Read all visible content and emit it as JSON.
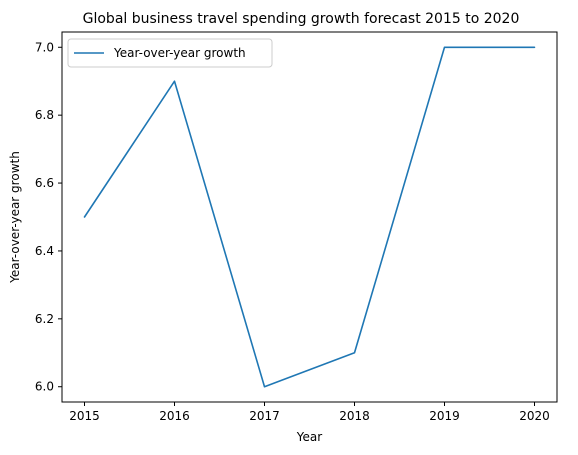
{
  "chart_data": {
    "type": "line",
    "title": "Global business travel spending growth forecast 2015 to 2020",
    "xlabel": "Year",
    "ylabel": "Year-over-year growth",
    "x": [
      "2015",
      "2016",
      "2017",
      "2018",
      "2019",
      "2020"
    ],
    "series": [
      {
        "name": "Year-over-year growth",
        "values": [
          6.5,
          6.9,
          6.0,
          6.1,
          7.0,
          7.0
        ],
        "color": "#1f77b4"
      }
    ],
    "xlim": [
      2014.75,
      2020.25
    ],
    "ylim": [
      5.955,
      7.045
    ],
    "yticks": [
      6.0,
      6.2,
      6.4,
      6.6,
      6.8,
      7.0
    ],
    "ytick_labels": [
      "6.0",
      "6.2",
      "6.4",
      "6.6",
      "6.8",
      "7.0"
    ],
    "grid": false,
    "legend_position": "upper-left"
  }
}
